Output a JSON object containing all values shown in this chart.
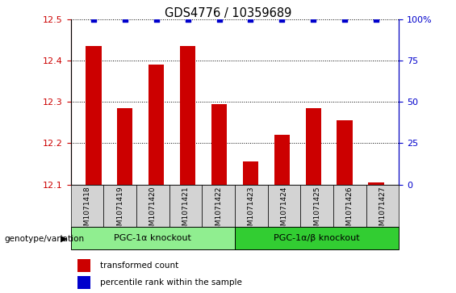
{
  "title": "GDS4776 / 10359689",
  "samples": [
    "GSM1071418",
    "GSM1071419",
    "GSM1071420",
    "GSM1071421",
    "GSM1071422",
    "GSM1071423",
    "GSM1071424",
    "GSM1071425",
    "GSM1071426",
    "GSM1071427"
  ],
  "transformed_counts": [
    12.435,
    12.285,
    12.39,
    12.435,
    12.295,
    12.155,
    12.22,
    12.285,
    12.255,
    12.105
  ],
  "percentile_ranks": [
    100,
    100,
    100,
    100,
    100,
    100,
    100,
    100,
    100,
    100
  ],
  "ylim_left": [
    12.1,
    12.5
  ],
  "ylim_right": [
    0,
    100
  ],
  "yticks_left": [
    12.1,
    12.2,
    12.3,
    12.4,
    12.5
  ],
  "yticks_right": [
    0,
    25,
    50,
    75,
    100
  ],
  "group1_label": "PGC-1α knockout",
  "group1_indices": [
    0,
    1,
    2,
    3,
    4
  ],
  "group2_label": "PGC-1α/β knockout",
  "group2_indices": [
    5,
    6,
    7,
    8,
    9
  ],
  "group1_color": "#90EE90",
  "group2_color": "#32CD32",
  "bar_color": "#CC0000",
  "dot_color": "#0000CC",
  "bar_bottom": 12.1,
  "legend_bar_label": "transformed count",
  "legend_dot_label": "percentile rank within the sample",
  "xlabel_left": "genotype/variation",
  "axis_label_color_left": "#CC0000",
  "axis_label_color_right": "#0000CC",
  "sample_bg_color": "#d3d3d3"
}
